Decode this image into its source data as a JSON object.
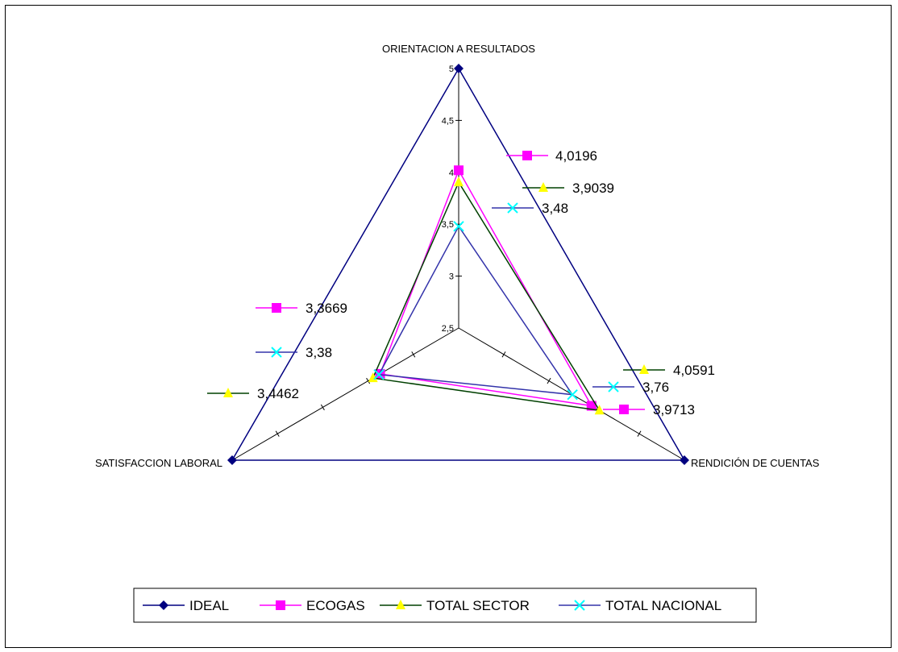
{
  "chart_data": {
    "type": "radar",
    "title": "",
    "axes": [
      "ORIENTACION A RESULTADOS",
      "RENDICIÓN DE CUENTAS",
      "SATISFACCION LABORAL"
    ],
    "range": [
      2.5,
      5
    ],
    "ticks": [
      "2,5",
      "3",
      "3,5",
      "4",
      "4,5",
      "5"
    ],
    "tick_values": [
      2.5,
      3,
      3.5,
      4,
      4.5,
      5
    ],
    "legend_position": "bottom",
    "series": [
      {
        "name": "IDEAL",
        "color": "#000080",
        "marker": "diamond",
        "values": [
          5,
          5,
          5
        ],
        "labels": [
          "",
          "",
          ""
        ]
      },
      {
        "name": "ECOGAS",
        "color": "#ff00ff",
        "marker": "square",
        "values": [
          4.0196,
          3.9713,
          3.3669
        ],
        "labels": [
          "4,0196",
          "3,9713",
          "3,3669"
        ]
      },
      {
        "name": "TOTAL SECTOR",
        "color": "#004000",
        "marker_color": "#ffff00",
        "marker": "triangle",
        "values": [
          3.9039,
          4.0591,
          3.4462
        ],
        "labels": [
          "3,9039",
          "4,0591",
          "3,4462"
        ]
      },
      {
        "name": "TOTAL NACIONAL",
        "color": "#3333aa",
        "marker_color": "#00ffff",
        "marker": "x",
        "values": [
          3.48,
          3.76,
          3.38
        ],
        "labels": [
          "3,48",
          "3,76",
          "3,38"
        ]
      }
    ]
  }
}
